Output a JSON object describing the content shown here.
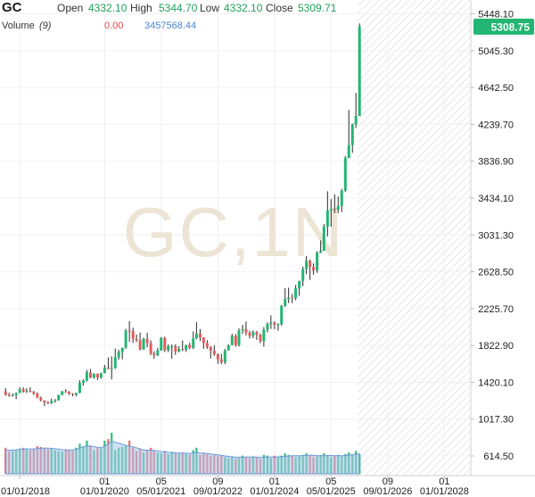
{
  "header": {
    "symbol": "GC",
    "open_label": "Open",
    "open_value": "4332.10",
    "high_label": "High",
    "high_value": "5344.70",
    "low_label": "Low",
    "low_value": "4332.10",
    "close_label": "Close",
    "close_value": "5309.71",
    "volume_label": "Volume",
    "volume_period": "(9)",
    "volume_value_a": "0.00",
    "volume_value_b": "3457568.44"
  },
  "watermark": "GC,1N",
  "last_price_badge": "5308.75",
  "colors": {
    "up": "#22b573",
    "down": "#e35d5d",
    "ohlc_value": "#22a061",
    "volume_fill": "#aac7ec",
    "volume_line": "#6a9bd8",
    "vol_value_a": "#e04848",
    "vol_value_b": "#4a86cf"
  },
  "chart_data": {
    "type": "candlestick",
    "y_ticks": [
      "5448.10",
      "5045.30",
      "4642.50",
      "4239.70",
      "3836.90",
      "3434.10",
      "3031.30",
      "2628.50",
      "2225.70",
      "1822.90",
      "1420.10",
      "1017.30",
      "614.50"
    ],
    "y_axis_ticks": [
      5448.1,
      5045.3,
      4642.5,
      4239.7,
      3836.9,
      3434.1,
      3031.3,
      2628.5,
      2225.7,
      1822.9,
      1420.1,
      1017.3,
      614.5
    ],
    "x_ticks": [
      {
        "row1": "",
        "row2": "01/01/2018",
        "date": "2018-01-01"
      },
      {
        "row1": "01",
        "row2": "01/01/2020",
        "date": "2020-01-01"
      },
      {
        "row1": "05",
        "row2": "05/01/2021",
        "date": "2021-05-01"
      },
      {
        "row1": "09",
        "row2": "09/01/2022",
        "date": "2022-09-01"
      },
      {
        "row1": "01",
        "row2": "01/01/2024",
        "date": "2024-01-01"
      },
      {
        "row1": "05",
        "row2": "05/01/2025",
        "date": "2025-05-01"
      },
      {
        "row1": "09",
        "row2": "09/01/2026",
        "date": "2026-09-01"
      },
      {
        "row1": "01",
        "row2": "01/01/2028",
        "date": "2028-01-01"
      }
    ],
    "x_range": [
      "2017-07-15",
      "2028-08-15"
    ],
    "y_range": [
      400,
      5600
    ],
    "last_price": 5308.75,
    "candles": [
      {
        "date": "2017-09-01",
        "o": 1322,
        "h": 1357,
        "l": 1274,
        "c": 1283
      },
      {
        "date": "2017-10-01",
        "o": 1283,
        "h": 1306,
        "l": 1262,
        "c": 1271
      },
      {
        "date": "2017-11-01",
        "o": 1271,
        "h": 1299,
        "l": 1264,
        "c": 1280
      },
      {
        "date": "2017-12-01",
        "o": 1280,
        "h": 1309,
        "l": 1236,
        "c": 1303
      },
      {
        "date": "2018-01-01",
        "o": 1303,
        "h": 1366,
        "l": 1302,
        "c": 1343
      },
      {
        "date": "2018-02-01",
        "o": 1343,
        "h": 1366,
        "l": 1307,
        "c": 1318
      },
      {
        "date": "2018-03-01",
        "o": 1318,
        "h": 1356,
        "l": 1303,
        "c": 1325
      },
      {
        "date": "2018-04-01",
        "o": 1325,
        "h": 1365,
        "l": 1310,
        "c": 1315
      },
      {
        "date": "2018-05-01",
        "o": 1315,
        "h": 1326,
        "l": 1281,
        "c": 1298
      },
      {
        "date": "2018-06-01",
        "o": 1298,
        "h": 1309,
        "l": 1245,
        "c": 1252
      },
      {
        "date": "2018-07-01",
        "o": 1252,
        "h": 1265,
        "l": 1211,
        "c": 1223
      },
      {
        "date": "2018-08-01",
        "o": 1223,
        "h": 1221,
        "l": 1160,
        "c": 1200
      },
      {
        "date": "2018-09-01",
        "o": 1200,
        "h": 1214,
        "l": 1180,
        "c": 1192
      },
      {
        "date": "2018-10-01",
        "o": 1192,
        "h": 1243,
        "l": 1182,
        "c": 1215
      },
      {
        "date": "2018-11-01",
        "o": 1215,
        "h": 1237,
        "l": 1196,
        "c": 1223
      },
      {
        "date": "2018-12-01",
        "o": 1223,
        "h": 1285,
        "l": 1221,
        "c": 1282
      },
      {
        "date": "2019-01-01",
        "o": 1282,
        "h": 1326,
        "l": 1277,
        "c": 1321
      },
      {
        "date": "2019-02-01",
        "o": 1321,
        "h": 1347,
        "l": 1304,
        "c": 1316
      },
      {
        "date": "2019-03-01",
        "o": 1316,
        "h": 1324,
        "l": 1281,
        "c": 1298
      },
      {
        "date": "2019-04-01",
        "o": 1298,
        "h": 1300,
        "l": 1266,
        "c": 1285
      },
      {
        "date": "2019-05-01",
        "o": 1285,
        "h": 1306,
        "l": 1267,
        "c": 1305
      },
      {
        "date": "2019-06-01",
        "o": 1305,
        "h": 1442,
        "l": 1300,
        "c": 1413
      },
      {
        "date": "2019-07-01",
        "o": 1413,
        "h": 1455,
        "l": 1384,
        "c": 1437
      },
      {
        "date": "2019-08-01",
        "o": 1437,
        "h": 1555,
        "l": 1430,
        "c": 1529
      },
      {
        "date": "2019-09-01",
        "o": 1529,
        "h": 1566,
        "l": 1465,
        "c": 1472
      },
      {
        "date": "2019-10-01",
        "o": 1472,
        "h": 1519,
        "l": 1458,
        "c": 1514
      },
      {
        "date": "2019-11-01",
        "o": 1514,
        "h": 1516,
        "l": 1445,
        "c": 1473
      },
      {
        "date": "2019-12-01",
        "o": 1473,
        "h": 1525,
        "l": 1459,
        "c": 1519
      },
      {
        "date": "2020-01-01",
        "o": 1519,
        "h": 1611,
        "l": 1517,
        "c": 1582
      },
      {
        "date": "2020-02-01",
        "o": 1582,
        "h": 1692,
        "l": 1564,
        "c": 1566
      },
      {
        "date": "2020-03-01",
        "o": 1566,
        "h": 1704,
        "l": 1451,
        "c": 1577
      },
      {
        "date": "2020-04-01",
        "o": 1577,
        "h": 1788,
        "l": 1567,
        "c": 1694
      },
      {
        "date": "2020-05-01",
        "o": 1694,
        "h": 1775,
        "l": 1667,
        "c": 1751
      },
      {
        "date": "2020-06-01",
        "o": 1751,
        "h": 1800,
        "l": 1671,
        "c": 1800
      },
      {
        "date": "2020-07-01",
        "o": 1800,
        "h": 2005,
        "l": 1784,
        "c": 1986
      },
      {
        "date": "2020-08-01",
        "o": 1986,
        "h": 2089,
        "l": 1863,
        "c": 1978
      },
      {
        "date": "2020-09-01",
        "o": 1978,
        "h": 2016,
        "l": 1850,
        "c": 1895
      },
      {
        "date": "2020-10-01",
        "o": 1895,
        "h": 1942,
        "l": 1860,
        "c": 1879
      },
      {
        "date": "2020-11-01",
        "o": 1879,
        "h": 1966,
        "l": 1767,
        "c": 1780
      },
      {
        "date": "2020-12-01",
        "o": 1780,
        "h": 1907,
        "l": 1776,
        "c": 1895
      },
      {
        "date": "2021-01-01",
        "o": 1895,
        "h": 1962,
        "l": 1803,
        "c": 1850
      },
      {
        "date": "2021-02-01",
        "o": 1850,
        "h": 1877,
        "l": 1717,
        "c": 1734
      },
      {
        "date": "2021-03-01",
        "o": 1734,
        "h": 1758,
        "l": 1677,
        "c": 1715
      },
      {
        "date": "2021-04-01",
        "o": 1715,
        "h": 1797,
        "l": 1707,
        "c": 1769
      },
      {
        "date": "2021-05-01",
        "o": 1769,
        "h": 1916,
        "l": 1765,
        "c": 1905
      },
      {
        "date": "2021-06-01",
        "o": 1905,
        "h": 1919,
        "l": 1750,
        "c": 1771
      },
      {
        "date": "2021-07-01",
        "o": 1771,
        "h": 1834,
        "l": 1751,
        "c": 1814
      },
      {
        "date": "2021-08-01",
        "o": 1814,
        "h": 1833,
        "l": 1677,
        "c": 1814
      },
      {
        "date": "2021-09-01",
        "o": 1814,
        "h": 1836,
        "l": 1721,
        "c": 1757
      },
      {
        "date": "2021-10-01",
        "o": 1757,
        "h": 1814,
        "l": 1746,
        "c": 1784
      },
      {
        "date": "2021-11-01",
        "o": 1784,
        "h": 1877,
        "l": 1759,
        "c": 1776
      },
      {
        "date": "2021-12-01",
        "o": 1776,
        "h": 1831,
        "l": 1753,
        "c": 1828
      },
      {
        "date": "2022-01-01",
        "o": 1828,
        "h": 1853,
        "l": 1780,
        "c": 1796
      },
      {
        "date": "2022-02-01",
        "o": 1796,
        "h": 1976,
        "l": 1783,
        "c": 1900
      },
      {
        "date": "2022-03-01",
        "o": 1900,
        "h": 2078,
        "l": 1890,
        "c": 1954
      },
      {
        "date": "2022-04-01",
        "o": 1954,
        "h": 2003,
        "l": 1872,
        "c": 1911
      },
      {
        "date": "2022-05-01",
        "o": 1911,
        "h": 1909,
        "l": 1787,
        "c": 1848
      },
      {
        "date": "2022-06-01",
        "o": 1848,
        "h": 1880,
        "l": 1785,
        "c": 1807
      },
      {
        "date": "2022-07-01",
        "o": 1807,
        "h": 1814,
        "l": 1681,
        "c": 1765
      },
      {
        "date": "2022-08-01",
        "o": 1765,
        "h": 1824,
        "l": 1709,
        "c": 1726
      },
      {
        "date": "2022-09-01",
        "o": 1726,
        "h": 1735,
        "l": 1622,
        "c": 1672
      },
      {
        "date": "2022-10-01",
        "o": 1672,
        "h": 1730,
        "l": 1618,
        "c": 1640
      },
      {
        "date": "2022-11-01",
        "o": 1640,
        "h": 1786,
        "l": 1618,
        "c": 1768
      },
      {
        "date": "2022-12-01",
        "o": 1768,
        "h": 1836,
        "l": 1766,
        "c": 1826
      },
      {
        "date": "2023-01-01",
        "o": 1826,
        "h": 1950,
        "l": 1824,
        "c": 1928
      },
      {
        "date": "2023-02-01",
        "o": 1928,
        "h": 1948,
        "l": 1809,
        "c": 1827
      },
      {
        "date": "2023-03-01",
        "o": 1827,
        "h": 2009,
        "l": 1810,
        "c": 1986
      },
      {
        "date": "2023-04-01",
        "o": 1986,
        "h": 2048,
        "l": 1949,
        "c": 1999
      },
      {
        "date": "2023-05-01",
        "o": 1999,
        "h": 2085,
        "l": 1932,
        "c": 1963
      },
      {
        "date": "2023-06-01",
        "o": 1963,
        "h": 1985,
        "l": 1900,
        "c": 1929
      },
      {
        "date": "2023-07-01",
        "o": 1929,
        "h": 1987,
        "l": 1903,
        "c": 1970
      },
      {
        "date": "2023-08-01",
        "o": 1970,
        "h": 1983,
        "l": 1884,
        "c": 1940
      },
      {
        "date": "2023-09-01",
        "o": 1940,
        "h": 1953,
        "l": 1848,
        "c": 1870
      },
      {
        "date": "2023-10-01",
        "o": 1870,
        "h": 2023,
        "l": 1810,
        "c": 1995
      },
      {
        "date": "2023-11-01",
        "o": 1995,
        "h": 2075,
        "l": 1965,
        "c": 2057
      },
      {
        "date": "2023-12-01",
        "o": 2057,
        "h": 2152,
        "l": 2004,
        "c": 2073
      },
      {
        "date": "2024-01-01",
        "o": 2073,
        "h": 2088,
        "l": 2001,
        "c": 2049
      },
      {
        "date": "2024-02-01",
        "o": 2049,
        "h": 2065,
        "l": 1984,
        "c": 2054
      },
      {
        "date": "2024-03-01",
        "o": 2054,
        "h": 2265,
        "l": 2039,
        "c": 2255
      },
      {
        "date": "2024-04-01",
        "o": 2255,
        "h": 2449,
        "l": 2245,
        "c": 2331
      },
      {
        "date": "2024-05-01",
        "o": 2331,
        "h": 2454,
        "l": 2286,
        "c": 2347
      },
      {
        "date": "2024-06-01",
        "o": 2347,
        "h": 2387,
        "l": 2285,
        "c": 2339
      },
      {
        "date": "2024-07-01",
        "o": 2339,
        "h": 2485,
        "l": 2318,
        "c": 2447
      },
      {
        "date": "2024-08-01",
        "o": 2447,
        "h": 2531,
        "l": 2364,
        "c": 2527
      },
      {
        "date": "2024-09-01",
        "o": 2527,
        "h": 2685,
        "l": 2471,
        "c": 2658
      },
      {
        "date": "2024-10-01",
        "o": 2658,
        "h": 2801,
        "l": 2603,
        "c": 2749
      },
      {
        "date": "2024-11-01",
        "o": 2749,
        "h": 2761,
        "l": 2541,
        "c": 2682
      },
      {
        "date": "2024-12-01",
        "o": 2682,
        "h": 2721,
        "l": 2596,
        "c": 2641
      },
      {
        "date": "2025-01-01",
        "o": 2641,
        "h": 2853,
        "l": 2617,
        "c": 2836
      },
      {
        "date": "2025-02-01",
        "o": 2836,
        "h": 2972,
        "l": 2832,
        "c": 2857
      },
      {
        "date": "2025-03-01",
        "o": 2857,
        "h": 3150,
        "l": 2856,
        "c": 3123
      },
      {
        "date": "2025-04-01",
        "o": 3123,
        "h": 3509,
        "l": 3015,
        "c": 3301
      },
      {
        "date": "2025-05-01",
        "o": 3301,
        "h": 3424,
        "l": 3121,
        "c": 3315
      },
      {
        "date": "2025-06-01",
        "o": 3315,
        "h": 3476,
        "l": 3271,
        "c": 3307
      },
      {
        "date": "2025-07-01",
        "o": 3307,
        "h": 3452,
        "l": 3269,
        "c": 3348
      },
      {
        "date": "2025-08-01",
        "o": 3348,
        "h": 3535,
        "l": 3281,
        "c": 3516
      },
      {
        "date": "2025-09-01",
        "o": 3516,
        "h": 3892,
        "l": 3500,
        "c": 3873
      },
      {
        "date": "2025-10-01",
        "o": 3873,
        "h": 4398,
        "l": 3870,
        "c": 4014
      },
      {
        "date": "2025-11-01",
        "o": 4014,
        "h": 4250,
        "l": 3930,
        "c": 4239
      },
      {
        "date": "2025-12-01",
        "o": 4239,
        "h": 4584,
        "l": 4200,
        "c": 4332
      },
      {
        "date": "2026-01-01",
        "o": 4332,
        "h": 5344,
        "l": 4332,
        "c": 5309
      }
    ],
    "volume": [
      330000,
      280000,
      290000,
      300000,
      320000,
      330000,
      310000,
      300000,
      320000,
      350000,
      340000,
      330000,
      310000,
      320000,
      300000,
      290000,
      280000,
      310000,
      300000,
      290000,
      330000,
      380000,
      340000,
      420000,
      360000,
      300000,
      330000,
      320000,
      420000,
      440000,
      520000,
      300000,
      330000,
      340000,
      360000,
      420000,
      330000,
      290000,
      320000,
      270000,
      300000,
      330000,
      300000,
      270000,
      260000,
      290000,
      250000,
      280000,
      260000,
      250000,
      270000,
      260000,
      240000,
      300000,
      330000,
      240000,
      260000,
      250000,
      230000,
      240000,
      220000,
      230000,
      210000,
      200000,
      220000,
      190000,
      200000,
      230000,
      210000,
      200000,
      220000,
      210000,
      190000,
      240000,
      230000,
      200000,
      230000,
      210000,
      230000,
      260000,
      240000,
      230000,
      210000,
      230000,
      240000,
      260000,
      230000,
      210000,
      220000,
      240000,
      260000,
      230000,
      210000,
      230000,
      240000,
      220000,
      250000,
      270000,
      240000,
      290000,
      250000
    ],
    "volume_ma": [
      300000,
      300000,
      300000,
      305000,
      310000,
      315000,
      315000,
      315000,
      315000,
      320000,
      325000,
      325000,
      325000,
      322000,
      318000,
      312000,
      305000,
      302000,
      300000,
      302000,
      310000,
      325000,
      340000,
      350000,
      352000,
      345000,
      335000,
      330000,
      350000,
      380000,
      410000,
      400000,
      390000,
      375000,
      360000,
      350000,
      340000,
      330000,
      315000,
      300000,
      300000,
      300000,
      295000,
      290000,
      282000,
      278000,
      272000,
      268000,
      265000,
      262000,
      262000,
      260000,
      258000,
      262000,
      268000,
      265000,
      262000,
      258000,
      252000,
      246000,
      240000,
      234000,
      226000,
      220000,
      215000,
      210000,
      208000,
      210000,
      212000,
      212000,
      212000,
      210000,
      208000,
      210000,
      212000,
      212000,
      213000,
      214000,
      216000,
      220000,
      225000,
      228000,
      228000,
      228000,
      230000,
      234000,
      236000,
      234000,
      230000,
      228000,
      230000,
      232000,
      232000,
      230000,
      230000,
      230000,
      232000,
      238000,
      242000,
      250000,
      252000
    ]
  }
}
